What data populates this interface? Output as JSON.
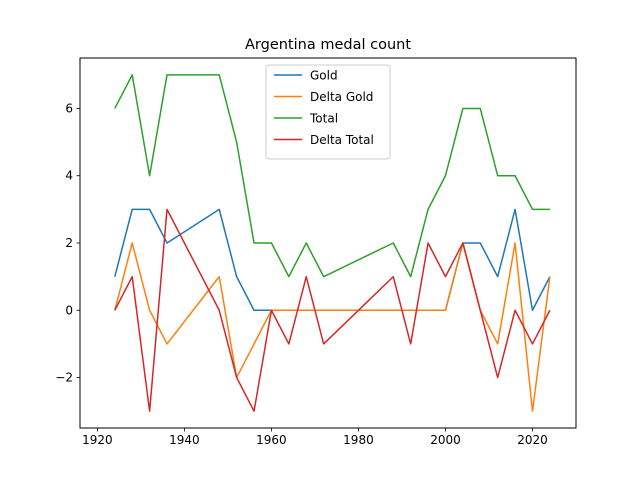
{
  "chart_data": {
    "type": "line",
    "title": "Argentina medal count",
    "xlabel": "",
    "ylabel": "",
    "xlim": [
      1916,
      2030
    ],
    "ylim": [
      -3.5,
      7.5
    ],
    "x_ticks": [
      1920,
      1940,
      1960,
      1980,
      2000,
      2020
    ],
    "y_ticks": [
      -2,
      0,
      2,
      4,
      6
    ],
    "y_tick_labels": [
      "−2",
      "0",
      "2",
      "4",
      "6"
    ],
    "grid": false,
    "legend_position": "top-center",
    "x": [
      1924,
      1928,
      1932,
      1936,
      1948,
      1952,
      1956,
      1960,
      1964,
      1968,
      1972,
      1988,
      1992,
      1996,
      2000,
      2004,
      2008,
      2012,
      2016,
      2020,
      2024
    ],
    "series": [
      {
        "name": "Gold",
        "color": "#1f77b4",
        "values": [
          1,
          3,
          3,
          2,
          3,
          1,
          0,
          0,
          0,
          0,
          0,
          0,
          0,
          0,
          0,
          2,
          2,
          1,
          3,
          0,
          1
        ]
      },
      {
        "name": "Delta Gold",
        "color": "#ff7f0e",
        "values": [
          0,
          2,
          0,
          -1,
          1,
          -2,
          -1,
          0,
          0,
          0,
          0,
          0,
          0,
          0,
          0,
          2,
          0,
          -1,
          2,
          -3,
          1
        ]
      },
      {
        "name": "Total",
        "color": "#2ca02c",
        "values": [
          6,
          7,
          4,
          7,
          7,
          5,
          2,
          2,
          1,
          2,
          1,
          2,
          1,
          3,
          4,
          6,
          6,
          4,
          4,
          3,
          3
        ]
      },
      {
        "name": "Delta Total",
        "color": "#d62728",
        "values": [
          0,
          1,
          -3,
          3,
          0,
          -2,
          -3,
          0,
          -1,
          1,
          -1,
          1,
          -1,
          2,
          1,
          2,
          0,
          -2,
          0,
          -1,
          0
        ]
      }
    ]
  }
}
